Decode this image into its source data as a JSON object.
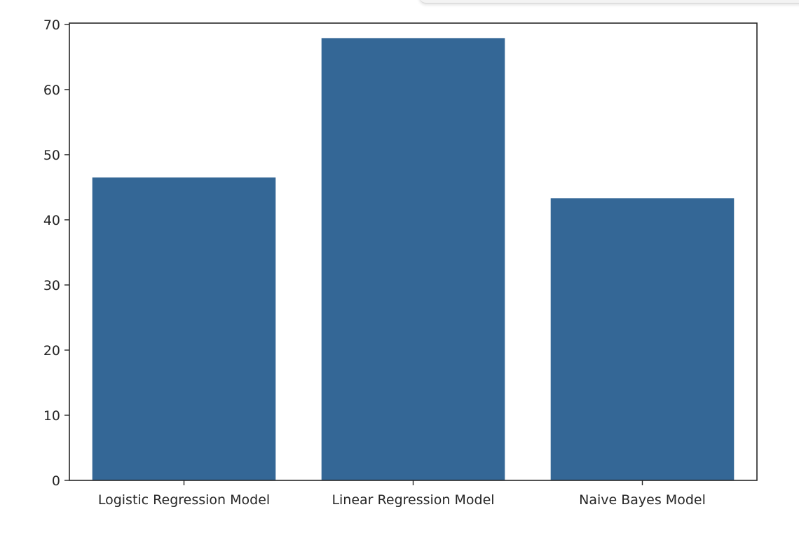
{
  "chart_data": {
    "type": "bar",
    "categories": [
      "Logistic Regression Model",
      "Linear Regression Model",
      "Naive Bayes Model"
    ],
    "values": [
      46.5,
      67.9,
      43.3
    ],
    "title": "",
    "xlabel": "",
    "ylabel": "",
    "ylim": [
      0,
      70.2
    ],
    "yticks": [
      0,
      10,
      20,
      30,
      40,
      50,
      60,
      70
    ],
    "yticklabels": [
      "0",
      "10",
      "20",
      "30",
      "40",
      "50",
      "60",
      "70"
    ],
    "bar_color": "#346796",
    "grid": false,
    "legend": "none"
  }
}
